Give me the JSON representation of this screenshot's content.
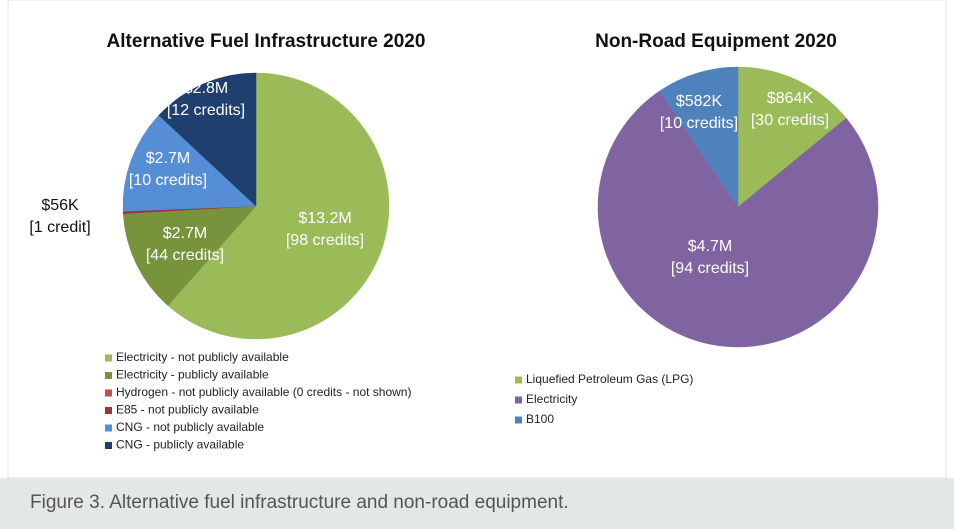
{
  "chart_data": [
    {
      "type": "pie",
      "title": "Alternative Fuel Infrastructure 2020",
      "categories": [
        "Electricity - not publicly available",
        "Electricity - publicly available",
        "Hydrogen - not publicly available (0 credits - not shown)",
        "E85 - not publicly available",
        "CNG - not publicly available",
        "CNG - publicly available"
      ],
      "values": [
        13200000,
        2700000,
        0,
        56000,
        2700000,
        2800000
      ],
      "value_labels": [
        "$13.2M",
        "$2.7M",
        null,
        "$56K",
        "$2.7M",
        "$2.8M"
      ],
      "credit_labels": [
        "[98 credits]",
        "[44 credits]",
        null,
        "[1 credit]",
        "[10 credits]",
        "[12 credits]"
      ],
      "colors": [
        "#9bbb59",
        "#77933c",
        "#c0504d",
        "#953735",
        "#558ed5",
        "#1f3f6e"
      ]
    },
    {
      "type": "pie",
      "title": "Non-Road Equipment 2020",
      "categories": [
        "Liquefied Petroleum Gas (LPG)",
        "Electricity",
        "B100"
      ],
      "values": [
        864000,
        4700000,
        582000
      ],
      "value_labels": [
        "$864K",
        "$4.7M",
        "$582K"
      ],
      "credit_labels": [
        "[30 credits]",
        "[94 credits]",
        "[10 credits]"
      ],
      "colors": [
        "#9bbb59",
        "#8064a2",
        "#4f81bd"
      ]
    }
  ],
  "caption": "Figure 3. Alternative fuel infrastructure and non-road equipment."
}
